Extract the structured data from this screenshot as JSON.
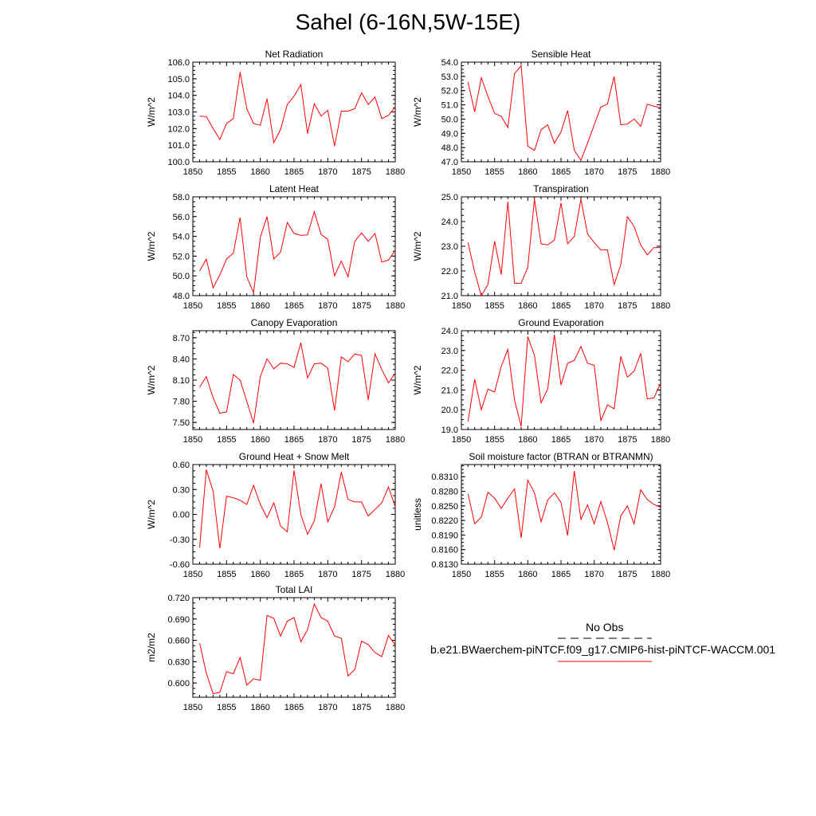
{
  "title": "Sahel (6-16N,5W-15E)",
  "legend": {
    "obs_label": "No Obs",
    "model_label": "b.e21.BWaerchem-piNTCF.f09_g17.CMIP6-hist-piNTCF-WACCM.001",
    "obs_color": "#000000",
    "model_color": "#ff0000"
  },
  "colors": {
    "line": "#ff0000",
    "axis": "#000000"
  },
  "chart_data": [
    {
      "type": "line",
      "title": "Net Radiation",
      "ylabel": "W/m^2",
      "xlim": [
        1850,
        1880
      ],
      "ylim": [
        100.0,
        106.0
      ],
      "xticks": [
        1850,
        1855,
        1860,
        1865,
        1870,
        1875,
        1880
      ],
      "yticks": [
        "100.0",
        "101.0",
        "102.0",
        "103.0",
        "104.0",
        "105.0",
        "106.0"
      ],
      "x": [
        1851,
        1852,
        1853,
        1854,
        1855,
        1856,
        1857,
        1858,
        1859,
        1860,
        1861,
        1862,
        1863,
        1864,
        1865,
        1866,
        1867,
        1868,
        1869,
        1870,
        1871,
        1872,
        1873,
        1874,
        1875,
        1876,
        1877,
        1878,
        1879,
        1880
      ],
      "series": [
        {
          "values": [
            102.75,
            102.72,
            102.0,
            101.35,
            102.3,
            102.6,
            105.4,
            103.2,
            102.3,
            102.2,
            103.8,
            101.15,
            101.95,
            103.45,
            103.95,
            104.65,
            101.7,
            103.5,
            102.75,
            103.1,
            100.95,
            103.05,
            103.05,
            103.2,
            104.15,
            103.45,
            103.9,
            102.6,
            102.8,
            103.3
          ]
        }
      ]
    },
    {
      "type": "line",
      "title": "Sensible Heat",
      "ylabel": "W/m^2",
      "xlim": [
        1850,
        1880
      ],
      "ylim": [
        47.0,
        54.0
      ],
      "xticks": [
        1850,
        1855,
        1860,
        1865,
        1870,
        1875,
        1880
      ],
      "yticks": [
        "47.0",
        "48.0",
        "49.0",
        "50.0",
        "51.0",
        "52.0",
        "53.0",
        "54.0"
      ],
      "x": [
        1851,
        1852,
        1853,
        1854,
        1855,
        1856,
        1857,
        1858,
        1859,
        1860,
        1861,
        1862,
        1863,
        1864,
        1865,
        1866,
        1867,
        1868,
        1869,
        1870,
        1871,
        1872,
        1873,
        1874,
        1875,
        1876,
        1877,
        1878,
        1879,
        1880
      ],
      "series": [
        {
          "values": [
            52.6,
            50.5,
            52.9,
            51.6,
            50.4,
            50.2,
            49.4,
            53.2,
            53.75,
            48.1,
            47.8,
            49.25,
            49.6,
            48.3,
            49.1,
            50.6,
            47.8,
            47.1,
            48.3,
            49.6,
            50.85,
            51.05,
            53.0,
            49.6,
            49.65,
            50.0,
            49.5,
            51.05,
            50.9,
            50.8
          ]
        }
      ]
    },
    {
      "type": "line",
      "title": "Latent Heat",
      "ylabel": "W/m^2",
      "xlim": [
        1850,
        1880
      ],
      "ylim": [
        48.0,
        58.0
      ],
      "xticks": [
        1850,
        1855,
        1860,
        1865,
        1870,
        1875,
        1880
      ],
      "yticks": [
        "48.0",
        "50.0",
        "52.0",
        "54.0",
        "56.0",
        "58.0"
      ],
      "x": [
        1851,
        1852,
        1853,
        1854,
        1855,
        1856,
        1857,
        1858,
        1859,
        1860,
        1861,
        1862,
        1863,
        1864,
        1865,
        1866,
        1867,
        1868,
        1869,
        1870,
        1871,
        1872,
        1873,
        1874,
        1875,
        1876,
        1877,
        1878,
        1879,
        1880
      ],
      "series": [
        {
          "values": [
            50.5,
            51.7,
            48.8,
            50.1,
            51.7,
            52.3,
            55.9,
            49.9,
            48.3,
            53.9,
            56.0,
            51.7,
            52.4,
            55.4,
            54.3,
            54.1,
            54.15,
            56.5,
            54.2,
            53.7,
            50.0,
            51.5,
            49.9,
            53.5,
            54.35,
            53.5,
            54.3,
            51.4,
            51.6,
            52.6
          ]
        }
      ]
    },
    {
      "type": "line",
      "title": "Transpiration",
      "ylabel": "W/m^2",
      "xlim": [
        1850,
        1880
      ],
      "ylim": [
        21.0,
        25.0
      ],
      "xticks": [
        1850,
        1855,
        1860,
        1865,
        1870,
        1875,
        1880
      ],
      "yticks": [
        "21.0",
        "22.0",
        "23.0",
        "24.0",
        "25.0"
      ],
      "x": [
        1851,
        1852,
        1853,
        1854,
        1855,
        1856,
        1857,
        1858,
        1859,
        1860,
        1861,
        1862,
        1863,
        1864,
        1865,
        1866,
        1867,
        1868,
        1869,
        1870,
        1871,
        1872,
        1873,
        1874,
        1875,
        1876,
        1877,
        1878,
        1879,
        1880
      ],
      "series": [
        {
          "values": [
            23.15,
            21.95,
            21.0,
            21.45,
            23.2,
            21.85,
            24.8,
            21.5,
            21.5,
            22.15,
            24.9,
            23.1,
            23.05,
            23.25,
            24.75,
            23.1,
            23.4,
            24.9,
            23.5,
            23.15,
            22.85,
            22.85,
            21.45,
            22.25,
            24.2,
            23.8,
            23.05,
            22.65,
            22.95,
            22.95
          ]
        }
      ]
    },
    {
      "type": "line",
      "title": "Canopy Evaporation",
      "ylabel": "W/m^2",
      "xlim": [
        1850,
        1880
      ],
      "ylim": [
        7.4,
        8.8
      ],
      "xticks": [
        1850,
        1855,
        1860,
        1865,
        1870,
        1875,
        1880
      ],
      "yticks": [
        "7.50",
        "7.80",
        "8.10",
        "8.40",
        "8.70"
      ],
      "x": [
        1851,
        1852,
        1853,
        1854,
        1855,
        1856,
        1857,
        1858,
        1859,
        1860,
        1861,
        1862,
        1863,
        1864,
        1865,
        1866,
        1867,
        1868,
        1869,
        1870,
        1871,
        1872,
        1873,
        1874,
        1875,
        1876,
        1877,
        1878,
        1879,
        1880
      ],
      "series": [
        {
          "values": [
            8.0,
            8.15,
            7.85,
            7.63,
            7.65,
            8.18,
            8.1,
            7.8,
            7.49,
            8.15,
            8.4,
            8.26,
            8.34,
            8.33,
            8.28,
            8.63,
            8.13,
            8.33,
            8.34,
            8.27,
            7.67,
            8.43,
            8.36,
            8.47,
            8.45,
            7.82,
            8.47,
            8.25,
            8.06,
            8.2
          ]
        }
      ]
    },
    {
      "type": "line",
      "title": "Ground Evaporation",
      "ylabel": "W/m^2",
      "xlim": [
        1850,
        1880
      ],
      "ylim": [
        19.0,
        24.0
      ],
      "xticks": [
        1850,
        1855,
        1860,
        1865,
        1870,
        1875,
        1880
      ],
      "yticks": [
        "19.0",
        "20.0",
        "21.0",
        "22.0",
        "23.0",
        "24.0"
      ],
      "x": [
        1851,
        1852,
        1853,
        1854,
        1855,
        1856,
        1857,
        1858,
        1859,
        1860,
        1861,
        1862,
        1863,
        1864,
        1865,
        1866,
        1867,
        1868,
        1869,
        1870,
        1871,
        1872,
        1873,
        1874,
        1875,
        1876,
        1877,
        1878,
        1879,
        1880
      ],
      "series": [
        {
          "values": [
            19.4,
            21.55,
            20.0,
            21.05,
            20.9,
            22.2,
            23.05,
            20.5,
            19.15,
            23.7,
            22.75,
            20.35,
            21.05,
            23.8,
            21.25,
            22.35,
            22.5,
            23.2,
            22.35,
            22.25,
            19.45,
            20.25,
            20.05,
            22.7,
            21.65,
            21.95,
            22.85,
            20.55,
            20.6,
            21.35
          ]
        }
      ]
    },
    {
      "type": "line",
      "title": "Ground Heat + Snow Melt",
      "ylabel": "W/m^2",
      "xlim": [
        1850,
        1880
      ],
      "ylim": [
        -0.6,
        0.6
      ],
      "xticks": [
        1850,
        1855,
        1860,
        1865,
        1870,
        1875,
        1880
      ],
      "yticks": [
        "-0.60",
        "-0.30",
        "0.00",
        "0.30",
        "0.60"
      ],
      "x": [
        1851,
        1852,
        1853,
        1854,
        1855,
        1856,
        1857,
        1858,
        1859,
        1860,
        1861,
        1862,
        1863,
        1864,
        1865,
        1866,
        1867,
        1868,
        1869,
        1870,
        1871,
        1872,
        1873,
        1874,
        1875,
        1876,
        1877,
        1878,
        1879,
        1880
      ],
      "series": [
        {
          "values": [
            -0.4,
            0.54,
            0.28,
            -0.41,
            0.22,
            0.2,
            0.17,
            0.12,
            0.35,
            0.12,
            -0.04,
            0.14,
            -0.14,
            -0.21,
            0.53,
            0.0,
            -0.24,
            -0.08,
            0.37,
            -0.09,
            0.09,
            0.51,
            0.18,
            0.15,
            0.15,
            -0.02,
            0.06,
            0.14,
            0.33,
            0.09
          ]
        }
      ]
    },
    {
      "type": "line",
      "title": "Soil moisture factor (BTRAN or BTRANMN)",
      "ylabel": "unitless",
      "xlim": [
        1850,
        1880
      ],
      "ylim": [
        0.813,
        0.8335
      ],
      "xticks": [
        1850,
        1855,
        1860,
        1865,
        1870,
        1875,
        1880
      ],
      "yticks": [
        "0.8130",
        "0.8160",
        "0.8190",
        "0.8220",
        "0.8250",
        "0.8280",
        "0.8310"
      ],
      "x": [
        1851,
        1852,
        1853,
        1854,
        1855,
        1856,
        1857,
        1858,
        1859,
        1860,
        1861,
        1862,
        1863,
        1864,
        1865,
        1866,
        1867,
        1868,
        1869,
        1870,
        1871,
        1872,
        1873,
        1874,
        1875,
        1876,
        1877,
        1878,
        1879,
        1880
      ],
      "series": [
        {
          "values": [
            0.8275,
            0.8213,
            0.8227,
            0.8278,
            0.8266,
            0.8245,
            0.8266,
            0.8285,
            0.8184,
            0.8303,
            0.8277,
            0.8217,
            0.8262,
            0.8277,
            0.8257,
            0.8189,
            0.8322,
            0.8222,
            0.8252,
            0.8213,
            0.8259,
            0.8216,
            0.8159,
            0.8229,
            0.825,
            0.8213,
            0.8283,
            0.8263,
            0.8253,
            0.8247
          ]
        }
      ]
    },
    {
      "type": "line",
      "title": "Total LAI",
      "ylabel": "m2/m2",
      "xlim": [
        1850,
        1880
      ],
      "ylim": [
        0.58,
        0.72
      ],
      "xticks": [
        1850,
        1855,
        1860,
        1865,
        1870,
        1875,
        1880
      ],
      "yticks": [
        "0.600",
        "0.630",
        "0.660",
        "0.690",
        "0.720"
      ],
      "x": [
        1851,
        1852,
        1853,
        1854,
        1855,
        1856,
        1857,
        1858,
        1859,
        1860,
        1861,
        1862,
        1863,
        1864,
        1865,
        1866,
        1867,
        1868,
        1869,
        1870,
        1871,
        1872,
        1873,
        1874,
        1875,
        1876,
        1877,
        1878,
        1879,
        1880
      ],
      "series": [
        {
          "values": [
            0.656,
            0.614,
            0.585,
            0.587,
            0.616,
            0.613,
            0.636,
            0.597,
            0.606,
            0.604,
            0.695,
            0.691,
            0.666,
            0.687,
            0.692,
            0.658,
            0.675,
            0.711,
            0.692,
            0.687,
            0.666,
            0.663,
            0.61,
            0.619,
            0.659,
            0.654,
            0.643,
            0.637,
            0.667,
            0.653
          ]
        }
      ]
    }
  ]
}
